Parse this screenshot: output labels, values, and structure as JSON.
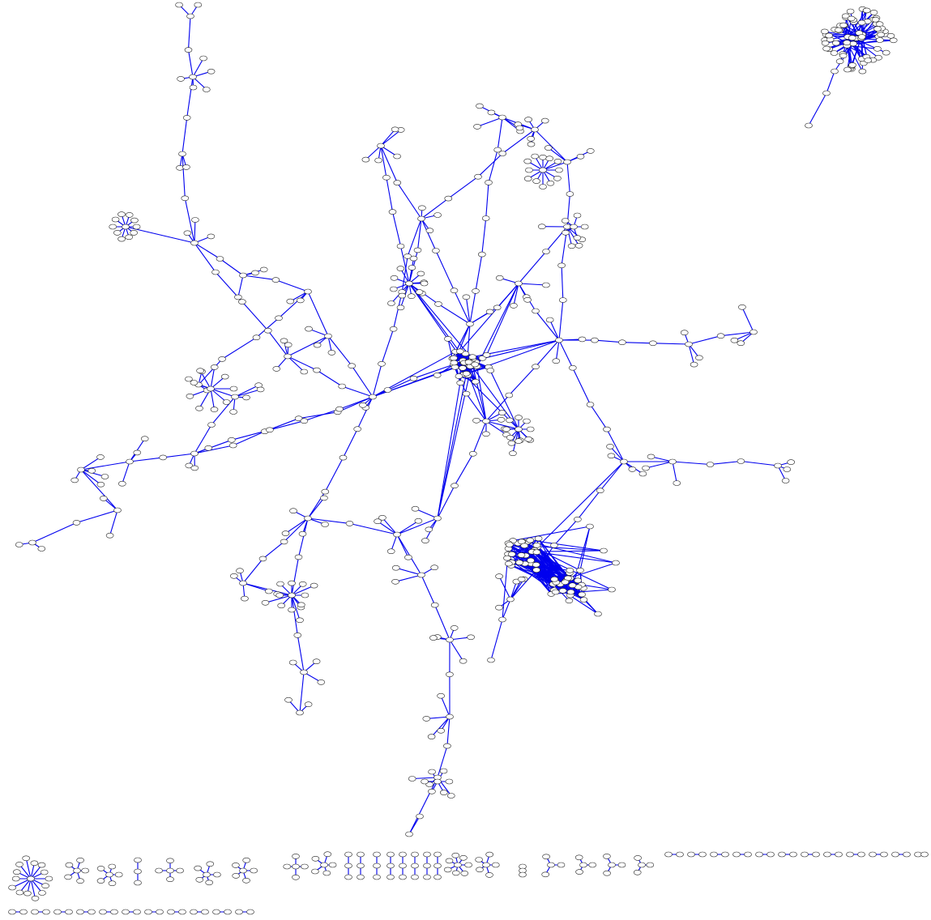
{
  "graph": {
    "edge_color": "#0000ee",
    "node_fill": "#ffffff",
    "node_stroke": "#222222",
    "background": "#ffffff",
    "directed": false,
    "labels_visible": false,
    "components": [
      {
        "id": "main-network",
        "kind": "large-connected"
      },
      {
        "id": "top-right-dense-hub",
        "kind": "dense-hub-with-tail"
      },
      {
        "id": "right-dense-cluster",
        "kind": "dense-cluster"
      },
      {
        "id": "small-components-row",
        "kind": "small-stars-and-pairs"
      },
      {
        "id": "bottom-pairs-row",
        "kind": "isolated-pairs"
      }
    ]
  }
}
